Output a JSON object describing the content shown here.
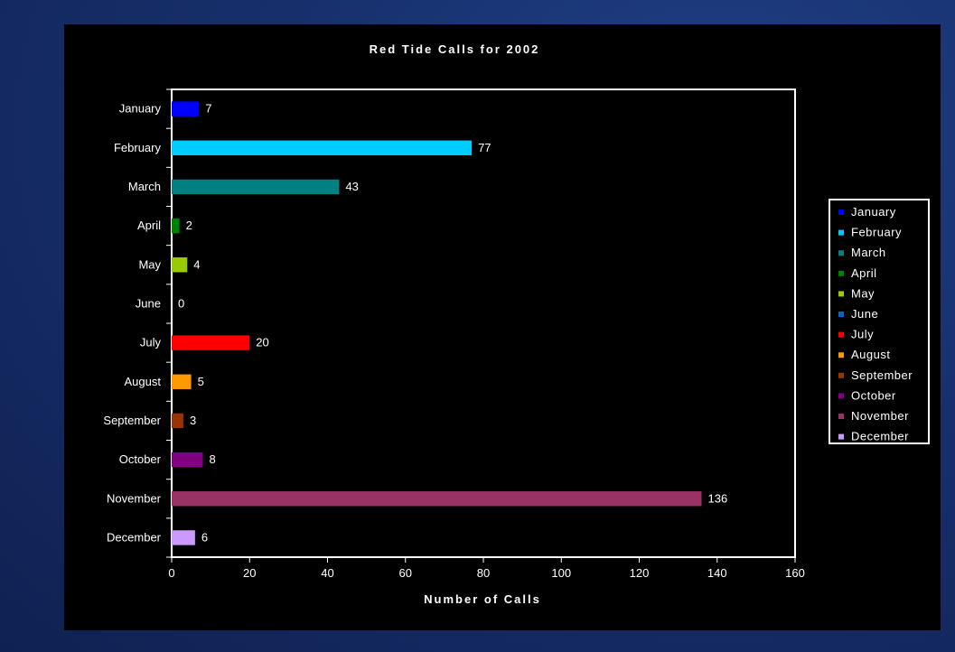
{
  "chart_data": {
    "type": "bar",
    "orientation": "horizontal",
    "title": "Red Tide Calls for 2002",
    "xlabel": "Number of Calls",
    "ylabel": "",
    "xlim": [
      0,
      160
    ],
    "x_ticks": [
      "0",
      "20",
      "40",
      "60",
      "80",
      "100",
      "120",
      "140",
      "160"
    ],
    "grid": false,
    "legend_position": "right",
    "categories": [
      "January",
      "February",
      "March",
      "April",
      "May",
      "June",
      "July",
      "August",
      "September",
      "October",
      "November",
      "December"
    ],
    "values": [
      7,
      77,
      43,
      2,
      4,
      0,
      20,
      5,
      3,
      8,
      136,
      6
    ],
    "colors": [
      "#0000ff",
      "#00ccff",
      "#008080",
      "#008000",
      "#99cc00",
      "#0066cc",
      "#ff0000",
      "#ff9900",
      "#993300",
      "#800080",
      "#993366",
      "#cc99ff"
    ],
    "legend": [
      "January",
      "February",
      "March",
      "April",
      "May",
      "June",
      "July",
      "August",
      "September",
      "October",
      "November",
      "December"
    ]
  }
}
